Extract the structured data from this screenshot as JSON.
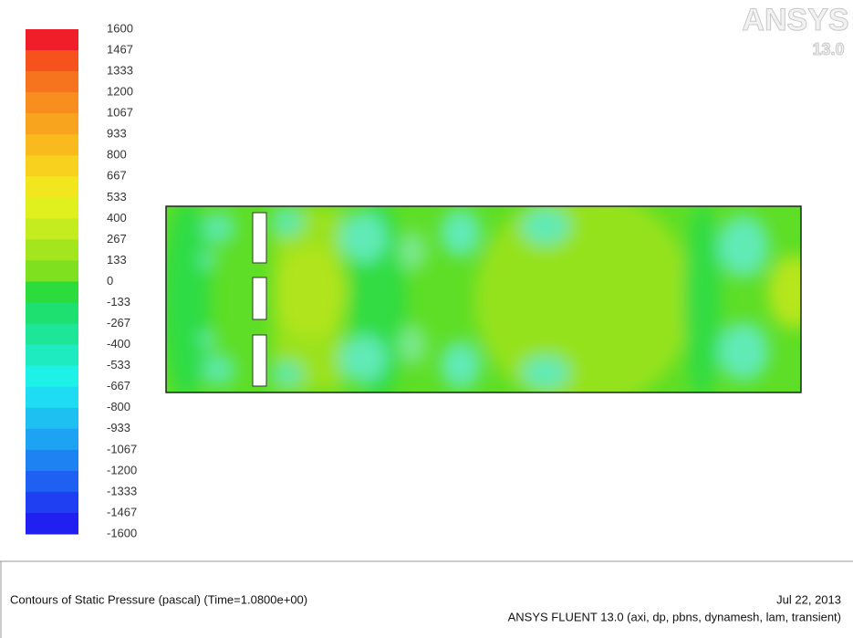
{
  "logo": {
    "name": "ANSYS",
    "version": "13.0"
  },
  "colorbar": {
    "labels": [
      "1600",
      "1467",
      "1333",
      "1200",
      "1067",
      "933",
      "800",
      "667",
      "533",
      "400",
      "267",
      "133",
      "0",
      "-133",
      "-267",
      "-400",
      "-533",
      "-667",
      "-800",
      "-933",
      "-1067",
      "-1200",
      "-1333",
      "-1467",
      "-1600"
    ],
    "colors": [
      "#f01e28",
      "#f5521e",
      "#f7741e",
      "#f88e1e",
      "#f9a41e",
      "#f9ba1e",
      "#f8d01e",
      "#f2e61e",
      "#e0f01e",
      "#c4ec1e",
      "#a4e61e",
      "#7ee01e",
      "#2cdc3c",
      "#1ee070",
      "#1ee698",
      "#1eecc0",
      "#1ef2e8",
      "#1edcf2",
      "#1ec0f2",
      "#1ea2f2",
      "#1e82f2",
      "#1e60f2",
      "#1e40f2",
      "#2020f0"
    ]
  },
  "footer": {
    "title": "Contours of Static Pressure (pascal)  (Time=1.0800e+00)",
    "date": "Jul 22, 2013",
    "solver": "ANSYS FLUENT 13.0 (axi, dp, pbns, dynamesh, lam, transient)"
  }
}
